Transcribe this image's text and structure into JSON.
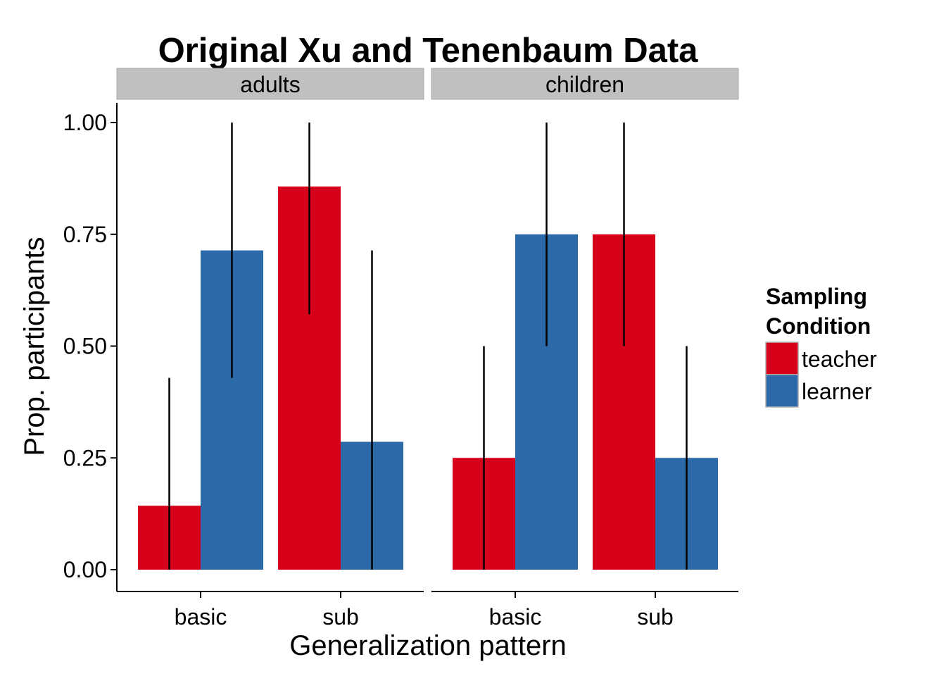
{
  "chart_data": {
    "type": "bar",
    "title": "Original Xu and Tenenbaum Data",
    "xlabel": "Generalization pattern",
    "ylabel": "Prop. participants",
    "ylim": [
      0,
      1
    ],
    "yticks": [
      "0.00",
      "0.25",
      "0.50",
      "0.75",
      "1.00"
    ],
    "ytick_values": [
      0,
      0.25,
      0.5,
      0.75,
      1.0
    ],
    "grid": false,
    "legend": {
      "title_line1": "Sampling",
      "title_line2": "Condition",
      "position": "right",
      "items": [
        {
          "label": "teacher",
          "color": "#d7001b"
        },
        {
          "label": "learner",
          "color": "#2c69a8"
        }
      ]
    },
    "categories": [
      "basic",
      "sub"
    ],
    "panels": [
      {
        "label": "adults",
        "series": [
          {
            "name": "teacher",
            "values": [
              0.143,
              0.857
            ],
            "ci_low": [
              0.0,
              0.571
            ],
            "ci_high": [
              0.429,
              1.0
            ]
          },
          {
            "name": "learner",
            "values": [
              0.714,
              0.286
            ],
            "ci_low": [
              0.429,
              0.0
            ],
            "ci_high": [
              1.0,
              0.714
            ]
          }
        ]
      },
      {
        "label": "children",
        "series": [
          {
            "name": "teacher",
            "values": [
              0.25,
              0.75
            ],
            "ci_low": [
              0.0,
              0.5
            ],
            "ci_high": [
              0.5,
              1.0
            ]
          },
          {
            "name": "learner",
            "values": [
              0.75,
              0.25
            ],
            "ci_low": [
              0.5,
              0.0
            ],
            "ci_high": [
              1.0,
              0.5
            ]
          }
        ]
      }
    ]
  }
}
